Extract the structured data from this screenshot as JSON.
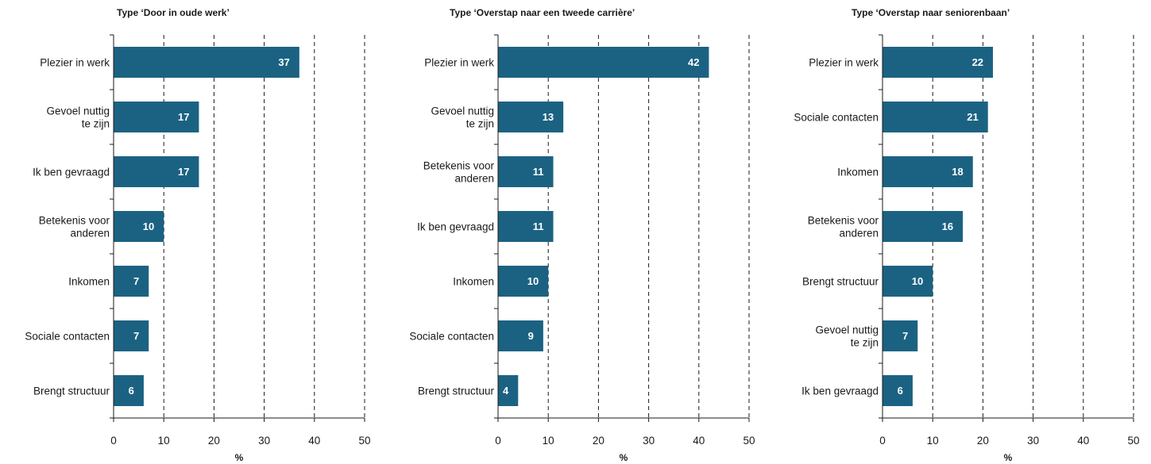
{
  "chart_data": [
    {
      "type": "bar",
      "orientation": "horizontal",
      "title": "Type ‘Door in oude werk’",
      "categories": [
        [
          "Plezier in werk"
        ],
        [
          "Gevoel nuttig",
          "te zijn"
        ],
        [
          "Ik ben gevraagd"
        ],
        [
          "Betekenis voor",
          "anderen"
        ],
        [
          "Inkomen"
        ],
        [
          "Sociale contacten"
        ],
        [
          "Brengt structuur"
        ]
      ],
      "values": [
        37,
        17,
        17,
        10,
        7,
        7,
        6
      ],
      "xlim": [
        0,
        50
      ],
      "xticks": [
        "0",
        "10",
        "20",
        "30",
        "40",
        "50"
      ],
      "xlabel": "%",
      "grid": "vertical dashed"
    },
    {
      "type": "bar",
      "orientation": "horizontal",
      "title": "Type ‘Overstap naar een tweede carrière’",
      "categories": [
        [
          "Plezier in werk"
        ],
        [
          "Gevoel nuttig",
          "te zijn"
        ],
        [
          "Betekenis voor",
          "anderen"
        ],
        [
          "Ik ben gevraagd"
        ],
        [
          "Inkomen"
        ],
        [
          "Sociale contacten"
        ],
        [
          "Brengt structuur"
        ]
      ],
      "values": [
        42,
        13,
        11,
        11,
        10,
        9,
        4
      ],
      "xlim": [
        0,
        50
      ],
      "xticks": [
        "0",
        "10",
        "20",
        "30",
        "40",
        "50"
      ],
      "xlabel": "%",
      "grid": "vertical dashed"
    },
    {
      "type": "bar",
      "orientation": "horizontal",
      "title": "Type ‘Overstap naar seniorenbaan’",
      "categories": [
        [
          "Plezier in werk"
        ],
        [
          "Sociale contacten"
        ],
        [
          "Inkomen"
        ],
        [
          "Betekenis voor",
          "anderen"
        ],
        [
          "Brengt structuur"
        ],
        [
          "Gevoel nuttig",
          "te zijn"
        ],
        [
          "Ik ben gevraagd"
        ]
      ],
      "values": [
        22,
        21,
        18,
        16,
        10,
        7,
        6
      ],
      "xlim": [
        0,
        50
      ],
      "xticks": [
        "0",
        "10",
        "20",
        "30",
        "40",
        "50"
      ],
      "xlabel": "%",
      "grid": "vertical dashed"
    }
  ],
  "colors": {
    "bar": "#1b6282",
    "bar_label": "#ffffff",
    "axis": "#1a1a1a",
    "grid": "#1a1a1a"
  }
}
